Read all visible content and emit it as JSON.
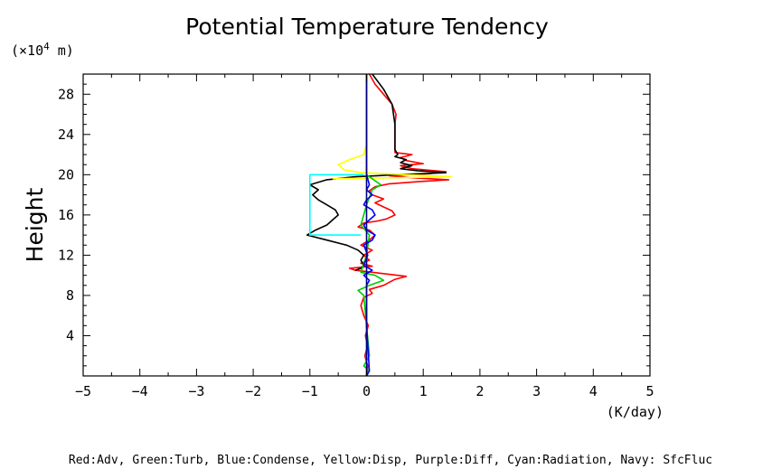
{
  "chart_data": {
    "type": "line",
    "title": "Potential Temperature Tendency",
    "xlabel": "(K/day)",
    "ylabel": "Height",
    "y_unit_base": "(×10",
    "y_unit_exp": "4",
    "y_unit_tail": " m)",
    "legend_text": "Red:Adv, Green:Turb, Blue:Condense, Yellow:Disp, Purple:Diff, Cyan:Radiation, Navy: SfcFluc",
    "xlim": [
      -5,
      5
    ],
    "ylim": [
      0,
      30
    ],
    "x_ticks": [
      "−5",
      "−4",
      "−3",
      "−2",
      "−1",
      "0",
      "1",
      "2",
      "3",
      "4",
      "5"
    ],
    "x_tick_values": [
      -5,
      -4,
      -3,
      -2,
      -1,
      0,
      1,
      2,
      3,
      4,
      5
    ],
    "y_ticks": [
      "4",
      "8",
      "12",
      "16",
      "20",
      "24",
      "28"
    ],
    "y_tick_values": [
      4,
      8,
      12,
      16,
      20,
      24,
      28
    ],
    "grid": false,
    "series": [
      {
        "name": "Red:Adv",
        "color": "#ff0000",
        "points": [
          [
            0,
            0
          ],
          [
            0.02,
            1
          ],
          [
            -0.03,
            2
          ],
          [
            0.02,
            3
          ],
          [
            -0.02,
            4
          ],
          [
            0.03,
            5
          ],
          [
            -0.05,
            6
          ],
          [
            -0.1,
            7
          ],
          [
            -0.05,
            7.8
          ],
          [
            0.1,
            8.2
          ],
          [
            0.05,
            8.6
          ],
          [
            0.3,
            9
          ],
          [
            0.5,
            9.6
          ],
          [
            0.7,
            9.9
          ],
          [
            0.4,
            10.1
          ],
          [
            0.1,
            10.3
          ],
          [
            -0.2,
            10.5
          ],
          [
            -0.3,
            10.7
          ],
          [
            0.1,
            10.9
          ],
          [
            -0.1,
            11.2
          ],
          [
            0.05,
            11.5
          ],
          [
            -0.05,
            12
          ],
          [
            0.1,
            12.5
          ],
          [
            -0.1,
            13
          ],
          [
            0.05,
            13.5
          ],
          [
            0.15,
            14
          ],
          [
            0.05,
            14.5
          ],
          [
            -0.15,
            14.8
          ],
          [
            -0.05,
            15.2
          ],
          [
            0.2,
            15.4
          ],
          [
            0.35,
            15.6
          ],
          [
            0.5,
            16
          ],
          [
            0.45,
            16.4
          ],
          [
            0.3,
            16.8
          ],
          [
            0.15,
            17.2
          ],
          [
            0.3,
            17.6
          ],
          [
            0.1,
            18
          ],
          [
            0.05,
            18.4
          ],
          [
            0.15,
            18.8
          ],
          [
            0.4,
            19.1
          ],
          [
            0.9,
            19.3
          ],
          [
            1.45,
            19.5
          ],
          [
            0.8,
            19.7
          ],
          [
            0.4,
            19.9
          ],
          [
            1.1,
            20.1
          ],
          [
            1.4,
            20.3
          ],
          [
            0.8,
            20.6
          ],
          [
            0.6,
            20.9
          ],
          [
            1.0,
            21.1
          ],
          [
            0.7,
            21.4
          ],
          [
            0.6,
            21.7
          ],
          [
            0.8,
            22
          ],
          [
            0.5,
            22.2
          ],
          [
            0.5,
            23
          ],
          [
            0.5,
            24
          ],
          [
            0.5,
            25
          ],
          [
            0.52,
            26
          ],
          [
            0.45,
            27
          ],
          [
            0.3,
            28
          ],
          [
            0.15,
            29
          ],
          [
            0.05,
            30
          ]
        ]
      },
      {
        "name": "Black",
        "color": "#000000",
        "points": [
          [
            -0.2,
            10.5
          ],
          [
            -0.1,
            10.7
          ],
          [
            -0.05,
            11
          ],
          [
            -0.1,
            11.5
          ],
          [
            -0.05,
            12
          ],
          [
            -0.15,
            12.5
          ],
          [
            -0.35,
            13
          ],
          [
            -0.7,
            13.5
          ],
          [
            -1.05,
            14
          ],
          [
            -0.9,
            14.5
          ],
          [
            -0.7,
            15
          ],
          [
            -0.6,
            15.5
          ],
          [
            -0.5,
            16
          ],
          [
            -0.55,
            16.5
          ],
          [
            -0.7,
            17
          ],
          [
            -0.85,
            17.5
          ],
          [
            -0.95,
            18
          ],
          [
            -0.85,
            18.5
          ],
          [
            -1.0,
            19
          ],
          [
            -0.7,
            19.5
          ],
          [
            -0.2,
            19.8
          ],
          [
            0.2,
            19.9
          ],
          [
            0.5,
            20
          ],
          [
            1.0,
            20.1
          ],
          [
            1.4,
            20.2
          ],
          [
            0.9,
            20.4
          ],
          [
            0.6,
            20.6
          ],
          [
            0.8,
            20.9
          ],
          [
            0.6,
            21.2
          ],
          [
            0.7,
            21.5
          ],
          [
            0.5,
            21.8
          ],
          [
            0.55,
            22
          ],
          [
            0.5,
            22.5
          ],
          [
            0.5,
            25
          ],
          [
            0.45,
            27
          ],
          [
            0.3,
            28.5
          ],
          [
            0.1,
            30
          ]
        ]
      },
      {
        "name": "Yellow:Disp",
        "color": "#ffff00",
        "points": [
          [
            -0.6,
            19.6
          ],
          [
            0.5,
            19.7
          ],
          [
            1.5,
            19.8
          ],
          [
            0.7,
            20.0
          ],
          [
            -0.1,
            20.2
          ],
          [
            -0.4,
            20.5
          ],
          [
            -0.5,
            21
          ],
          [
            -0.3,
            21.5
          ],
          [
            -0.05,
            22
          ],
          [
            0,
            23
          ],
          [
            0,
            25
          ]
        ]
      },
      {
        "name": "Cyan:Radiation",
        "color": "#00ffff",
        "points": [
          [
            -0.05,
            20
          ],
          [
            -1.0,
            20
          ],
          [
            -1.0,
            14
          ],
          [
            -0.1,
            14
          ]
        ]
      },
      {
        "name": "Green:Turb",
        "color": "#00cc00",
        "points": [
          [
            0,
            0
          ],
          [
            0.05,
            0.5
          ],
          [
            -0.05,
            1
          ],
          [
            0.05,
            2
          ],
          [
            0,
            5
          ],
          [
            -0.05,
            8
          ],
          [
            -0.15,
            8.5
          ],
          [
            0.05,
            9
          ],
          [
            0.3,
            9.5
          ],
          [
            0.15,
            10
          ],
          [
            -0.1,
            10.3
          ],
          [
            0,
            12
          ],
          [
            0.05,
            14
          ],
          [
            -0.1,
            15
          ],
          [
            0,
            17
          ],
          [
            0.1,
            18.5
          ],
          [
            0.25,
            19
          ],
          [
            0,
            20
          ]
        ]
      },
      {
        "name": "Blue:Condense",
        "color": "#0000ff",
        "points": [
          [
            0,
            0
          ],
          [
            0.05,
            0.5
          ],
          [
            0,
            5
          ],
          [
            0,
            9
          ],
          [
            0.05,
            9.5
          ],
          [
            -0.05,
            10
          ],
          [
            0.1,
            10.5
          ],
          [
            -0.05,
            11
          ],
          [
            0.02,
            12
          ],
          [
            -0.05,
            13
          ],
          [
            0.1,
            13.5
          ],
          [
            0.15,
            14
          ],
          [
            0,
            14.5
          ],
          [
            -0.05,
            15
          ],
          [
            0.05,
            15.5
          ],
          [
            0.15,
            16
          ],
          [
            0.1,
            16.5
          ],
          [
            -0.05,
            17
          ],
          [
            0,
            17.5
          ],
          [
            0.1,
            18
          ],
          [
            0,
            18.5
          ],
          [
            0.05,
            19
          ],
          [
            0,
            20
          ],
          [
            0,
            30
          ]
        ]
      },
      {
        "name": "Navy: SfcFluc",
        "color": "#000080",
        "points": [
          [
            0,
            0
          ],
          [
            0,
            30
          ]
        ]
      }
    ]
  }
}
